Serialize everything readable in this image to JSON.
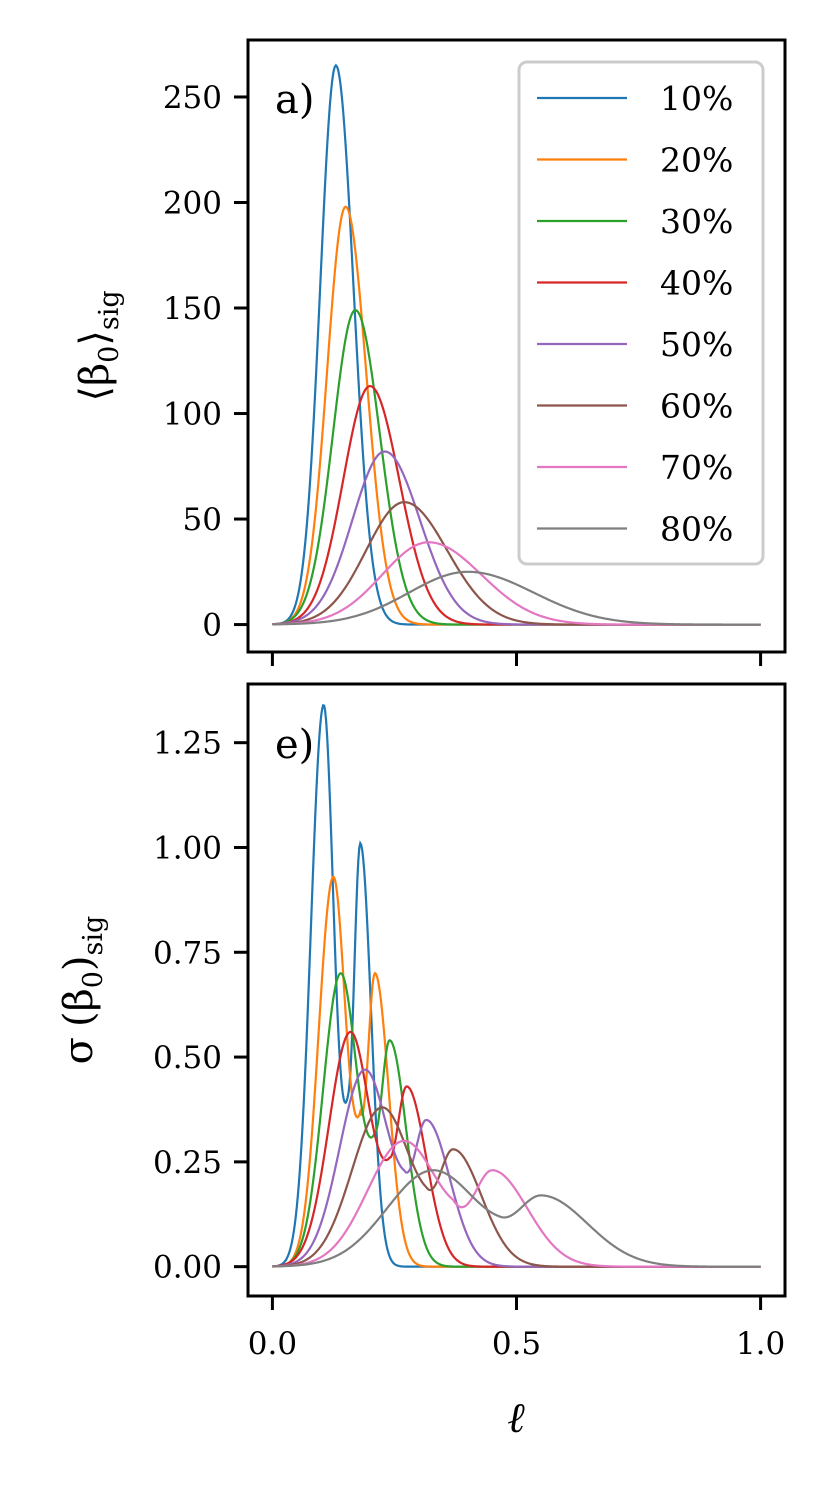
{
  "chart_data": [
    {
      "type": "line",
      "panel_label": "a)",
      "ylabel": {
        "main": "⟨β",
        "sub0": "0",
        "close": "⟩",
        "sub": "sig"
      },
      "xlabel": "",
      "xlim": [
        -0.05,
        1.05
      ],
      "ylim": [
        -13,
        277
      ],
      "xticks": [
        0.0,
        0.5,
        1.0
      ],
      "xtick_labels_visible": false,
      "yticks": [
        0,
        50,
        100,
        150,
        200,
        250
      ],
      "ytick_labels": [
        "0",
        "50",
        "100",
        "150",
        "200",
        "250"
      ],
      "legend_position": "top-right",
      "series": [
        {
          "name": "10%",
          "peak_x": 0.13,
          "peak_y": 265,
          "width_left": 0.032,
          "width_right": 0.036
        },
        {
          "name": "20%",
          "peak_x": 0.15,
          "peak_y": 198,
          "width_left": 0.038,
          "width_right": 0.042
        },
        {
          "name": "30%",
          "peak_x": 0.17,
          "peak_y": 149,
          "width_left": 0.046,
          "width_right": 0.05
        },
        {
          "name": "40%",
          "peak_x": 0.2,
          "peak_y": 113,
          "width_left": 0.055,
          "width_right": 0.06
        },
        {
          "name": "50%",
          "peak_x": 0.23,
          "peak_y": 82,
          "width_left": 0.066,
          "width_right": 0.072
        },
        {
          "name": "60%",
          "peak_x": 0.27,
          "peak_y": 58,
          "width_left": 0.078,
          "width_right": 0.088
        },
        {
          "name": "70%",
          "peak_x": 0.32,
          "peak_y": 39,
          "width_left": 0.095,
          "width_right": 0.108
        },
        {
          "name": "80%",
          "peak_x": 0.4,
          "peak_y": 25,
          "width_left": 0.12,
          "width_right": 0.135
        }
      ]
    },
    {
      "type": "line",
      "panel_label": "e)",
      "ylabel": {
        "prefix": "σ",
        "main": "(β",
        "sub0": "0",
        "close": ")",
        "sub": "sig"
      },
      "xlabel": "ℓ",
      "xlim": [
        -0.05,
        1.05
      ],
      "ylim": [
        -0.07,
        1.39
      ],
      "xticks": [
        0.0,
        0.5,
        1.0
      ],
      "xtick_labels": [
        "0.0",
        "0.5",
        "1.0"
      ],
      "yticks": [
        0.0,
        0.25,
        0.5,
        0.75,
        1.0,
        1.25
      ],
      "ytick_labels": [
        "0.00",
        "0.25",
        "0.50",
        "0.75",
        "1.00",
        "1.25"
      ],
      "series": [
        {
          "name": "10%",
          "peaks": [
            [
              0.105,
              1.34,
              0.026,
              0.02
            ],
            [
              0.18,
              1.01,
              0.013,
              0.022
            ]
          ],
          "dip_x": 0.155,
          "dip_y": 0.41
        },
        {
          "name": "20%",
          "peaks": [
            [
              0.125,
              0.93,
              0.03,
              0.024
            ],
            [
              0.21,
              0.7,
              0.015,
              0.028
            ]
          ],
          "dip_x": 0.18,
          "dip_y": 0.37
        },
        {
          "name": "30%",
          "peaks": [
            [
              0.14,
              0.7,
              0.036,
              0.032
            ],
            [
              0.24,
              0.54,
              0.018,
              0.034
            ]
          ],
          "dip_x": 0.21,
          "dip_y": 0.32
        },
        {
          "name": "40%",
          "peaks": [
            [
              0.16,
              0.56,
              0.044,
              0.038
            ],
            [
              0.275,
              0.43,
              0.021,
              0.04
            ]
          ],
          "dip_x": 0.24,
          "dip_y": 0.26
        },
        {
          "name": "50%",
          "peaks": [
            [
              0.19,
              0.47,
              0.052,
              0.046
            ],
            [
              0.315,
              0.35,
              0.025,
              0.048
            ]
          ],
          "dip_x": 0.27,
          "dip_y": 0.23
        },
        {
          "name": "60%",
          "peaks": [
            [
              0.225,
              0.38,
              0.062,
              0.056
            ],
            [
              0.37,
              0.28,
              0.03,
              0.058
            ]
          ],
          "dip_x": 0.315,
          "dip_y": 0.19
        },
        {
          "name": "70%",
          "peaks": [
            [
              0.27,
              0.3,
              0.075,
              0.066
            ],
            [
              0.45,
              0.23,
              0.038,
              0.072
            ]
          ],
          "dip_x": 0.37,
          "dip_y": 0.16
        },
        {
          "name": "80%",
          "peaks": [
            [
              0.33,
              0.23,
              0.095,
              0.085
            ],
            [
              0.55,
              0.17,
              0.05,
              0.095
            ]
          ],
          "dip_x": 0.465,
          "dip_y": 0.12
        }
      ]
    }
  ],
  "colors": [
    "#1f77b4",
    "#ff7f0e",
    "#2ca02c",
    "#d62728",
    "#9467bd",
    "#8c564b",
    "#e377c2",
    "#7f7f7f"
  ]
}
